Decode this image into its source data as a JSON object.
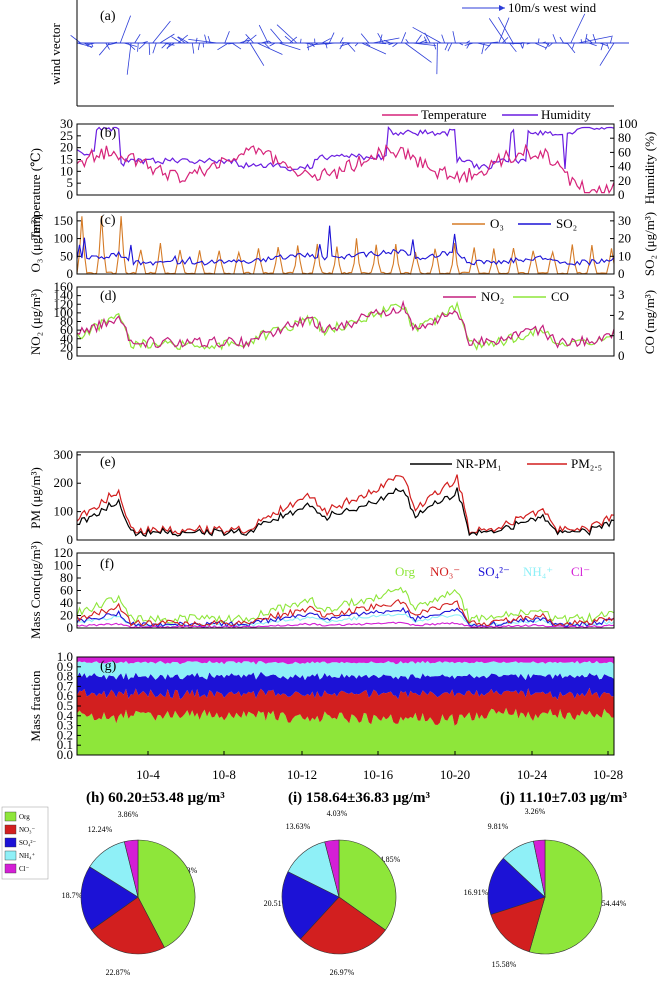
{
  "figure": {
    "panels": {
      "a": {
        "tag": "(a)",
        "ylabel": "wind vector",
        "legend": "10m/s west wind"
      },
      "b": {
        "tag": "(b)",
        "ylabel_left": "Temperature (℃)",
        "ylabel_right": "Humidity (%)",
        "legend": [
          "Temperature",
          "Humidity"
        ]
      },
      "c": {
        "tag": "(c)",
        "ylabel_left": "O₃ (μg/m³)",
        "ylabel_right": "SO₂ (μg/m³)",
        "legend": [
          "O₃",
          "SO₂"
        ]
      },
      "d": {
        "tag": "(d)",
        "ylabel_left": "NO₂ (μg/m³)",
        "ylabel_right": "CO (mg/m³)",
        "legend": [
          "NO₂",
          "CO"
        ]
      },
      "e": {
        "tag": "(e)",
        "ylabel": "PM (μg/m³)",
        "legend": [
          "NR-PM₁",
          "PM₂.₅"
        ]
      },
      "f": {
        "tag": "(f)",
        "ylabel": "Mass Conc(μg/m³)",
        "legend": [
          "Org",
          "NO₃⁻",
          "SO₄²⁻",
          "NH₄⁺",
          "Cl⁻"
        ]
      },
      "g": {
        "tag": "(g)",
        "ylabel": "Mass fraction"
      }
    },
    "x_ticks": [
      "10-4",
      "10-8",
      "10-12",
      "10-16",
      "10-20",
      "10-24",
      "10-28"
    ],
    "pie_legend": [
      "Org",
      "NO₃⁻",
      "SO₄²⁻",
      "NH₄⁺",
      "Cl⁻"
    ]
  },
  "colors": {
    "temperature": "#d6247a",
    "humidity": "#6a1de0",
    "o3": "#d57b27",
    "so2": "#1c12d6",
    "no2": "#c4207e",
    "co": "#8ee63a",
    "nrpm1": "#000000",
    "pm25": "#d21f1f",
    "org": "#8ee63a",
    "no3": "#d21f1f",
    "so4": "#1c12d6",
    "nh4": "#8ff0f7",
    "cl": "#d41fd6",
    "wind": "#2c3dd8"
  },
  "chart_data": [
    {
      "type": "line",
      "panel": "a",
      "note": "wind vector time series (direction/speed arrows)"
    },
    {
      "type": "line",
      "panel": "b",
      "series": [
        {
          "name": "Temperature",
          "axis": "left"
        },
        {
          "name": "Humidity",
          "axis": "right"
        }
      ],
      "ylim_left": [
        0,
        30
      ],
      "yticks_left": [
        0,
        5,
        10,
        15,
        20,
        25,
        30
      ],
      "ylim_right": [
        0,
        100
      ],
      "yticks_right": [
        0,
        20,
        40,
        60,
        80,
        100
      ]
    },
    {
      "type": "line",
      "panel": "c",
      "series": [
        {
          "name": "O3",
          "axis": "left"
        },
        {
          "name": "SO2",
          "axis": "right"
        }
      ],
      "ylim_left": [
        0,
        175
      ],
      "yticks_left": [
        0,
        50,
        100,
        150
      ],
      "ylim_right": [
        0,
        35
      ],
      "yticks_right": [
        0,
        10,
        20,
        30
      ]
    },
    {
      "type": "line",
      "panel": "d",
      "series": [
        {
          "name": "NO2",
          "axis": "left"
        },
        {
          "name": "CO",
          "axis": "right"
        }
      ],
      "ylim_left": [
        0,
        160
      ],
      "yticks_left": [
        0,
        20,
        40,
        60,
        80,
        100,
        120,
        140,
        160
      ],
      "ylim_right": [
        0,
        3.4
      ],
      "yticks_right": [
        0,
        1,
        2,
        3
      ]
    },
    {
      "type": "line",
      "panel": "e",
      "series": [
        {
          "name": "NR-PM1"
        },
        {
          "name": "PM2.5"
        }
      ],
      "ylim": [
        0,
        310
      ],
      "yticks": [
        0,
        100,
        200,
        300
      ]
    },
    {
      "type": "line",
      "panel": "f",
      "series": [
        {
          "name": "Org"
        },
        {
          "name": "NO3-"
        },
        {
          "name": "SO4 2-"
        },
        {
          "name": "NH4+"
        },
        {
          "name": "Cl-"
        }
      ],
      "ylim": [
        0,
        120
      ],
      "yticks": [
        0,
        20,
        40,
        60,
        80,
        100,
        120
      ]
    },
    {
      "type": "area",
      "panel": "g",
      "series": [
        {
          "name": "Org"
        },
        {
          "name": "NO3-"
        },
        {
          "name": "SO4 2-"
        },
        {
          "name": "NH4+"
        },
        {
          "name": "Cl-"
        }
      ],
      "ylim": [
        0,
        1
      ],
      "yticks": [
        0.0,
        0.1,
        0.2,
        0.3,
        0.4,
        0.5,
        0.6,
        0.7,
        0.8,
        0.9,
        1.0
      ]
    },
    {
      "type": "pie",
      "panel": "h",
      "title": "(h) 60.20±53.48 μg/m³",
      "labels": [
        "Org",
        "NO3-",
        "SO4 2-",
        "NH4+",
        "Cl-"
      ],
      "values": [
        42.33,
        22.87,
        18.7,
        12.24,
        3.86
      ],
      "value_labels": [
        "42.33%",
        "22.87%",
        "18.7%",
        "12.24%",
        "3.86%"
      ]
    },
    {
      "type": "pie",
      "panel": "i",
      "title": "(i) 158.64±36.83 μg/m³",
      "labels": [
        "Org",
        "NO3-",
        "SO4 2-",
        "NH4+",
        "Cl-"
      ],
      "values": [
        34.85,
        26.97,
        20.51,
        13.63,
        4.03
      ],
      "value_labels": [
        "34.85%",
        "26.97%",
        "20.51%",
        "13.63%",
        "4.03%"
      ]
    },
    {
      "type": "pie",
      "panel": "j",
      "title": "(j) 11.10±7.03 μg/m³",
      "labels": [
        "Org",
        "NO3-",
        "SO4 2-",
        "NH4+",
        "Cl-"
      ],
      "values": [
        54.44,
        15.58,
        16.91,
        9.81,
        3.26
      ],
      "value_labels": [
        "54.44%",
        "15.58%",
        "16.91%",
        "9.81%",
        "3.26%"
      ]
    }
  ]
}
